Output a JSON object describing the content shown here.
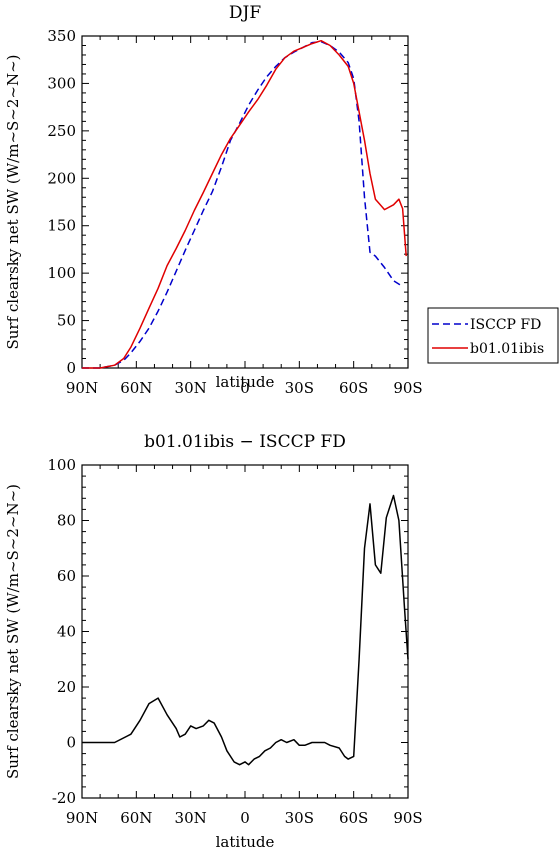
{
  "chart_data": [
    {
      "type": "line",
      "title": "DJF",
      "xlabel": "latitude",
      "ylabel": "Surf clearsky net SW (W/m~S~2~N~)",
      "xlim": [
        -90,
        90
      ],
      "ylim": [
        0,
        350
      ],
      "x_ticks": [
        -90,
        -60,
        -30,
        0,
        30,
        60,
        90
      ],
      "x_tick_labels": [
        "90N",
        "60N",
        "30N",
        "0",
        "30S",
        "60S",
        "90S"
      ],
      "y_ticks": [
        0,
        50,
        100,
        150,
        200,
        250,
        300,
        350
      ],
      "legend_position": "right",
      "series": [
        {
          "name": "ISCCP FD",
          "color": "#0000cc",
          "dash": "dashed",
          "x": [
            -90,
            -80,
            -72,
            -67,
            -63,
            -58,
            -53,
            -48,
            -43,
            -38,
            -33,
            -28,
            -23,
            -18,
            -13,
            -8,
            -3,
            2,
            7,
            12,
            17,
            22,
            27,
            32,
            37,
            42,
            47,
            52,
            57,
            60,
            63,
            66,
            69,
            72,
            77,
            82,
            87
          ],
          "values": [
            0,
            0,
            3,
            8,
            16,
            28,
            42,
            60,
            80,
            102,
            124,
            145,
            166,
            186,
            212,
            240,
            258,
            277,
            293,
            307,
            318,
            327,
            333,
            338,
            343,
            344,
            340,
            333,
            322,
            305,
            260,
            180,
            122,
            118,
            106,
            92,
            86
          ]
        },
        {
          "name": "b01.01ibis",
          "color": "#e00000",
          "dash": "solid",
          "x": [
            -90,
            -80,
            -72,
            -67,
            -63,
            -58,
            -53,
            -48,
            -43,
            -38,
            -33,
            -28,
            -23,
            -18,
            -13,
            -8,
            -3,
            2,
            7,
            12,
            17,
            22,
            27,
            32,
            37,
            42,
            47,
            52,
            57,
            60,
            63,
            66,
            69,
            72,
            77,
            82,
            85,
            87,
            89
          ],
          "values": [
            0,
            0,
            3,
            10,
            22,
            42,
            63,
            84,
            108,
            126,
            145,
            166,
            185,
            205,
            225,
            242,
            256,
            270,
            283,
            298,
            315,
            327,
            334,
            338,
            342,
            345,
            340,
            330,
            318,
            300,
            270,
            240,
            205,
            178,
            167,
            172,
            178,
            168,
            118
          ]
        }
      ]
    },
    {
      "type": "line",
      "title": "b01.01ibis − ISCCP FD",
      "xlabel": "latitude",
      "ylabel": "Surf clearsky net SW (W/m~S~2~N~)",
      "xlim": [
        -90,
        90
      ],
      "ylim": [
        -20,
        100
      ],
      "x_ticks": [
        -90,
        -60,
        -30,
        0,
        30,
        60,
        90
      ],
      "x_tick_labels": [
        "90N",
        "60N",
        "30N",
        "0",
        "30S",
        "60S",
        "90S"
      ],
      "y_ticks": [
        -20,
        0,
        20,
        40,
        60,
        80,
        100
      ],
      "series": [
        {
          "color": "#000000",
          "dash": "solid",
          "x": [
            -90,
            -80,
            -72,
            -63,
            -58,
            -53,
            -48,
            -43,
            -38,
            -36,
            -33,
            -30,
            -27,
            -23,
            -20,
            -17,
            -13,
            -10,
            -6,
            -3,
            0,
            2,
            5,
            8,
            11,
            14,
            17,
            20,
            23,
            27,
            30,
            33,
            37,
            40,
            44,
            47,
            52,
            55,
            57,
            60,
            63,
            66,
            69,
            72,
            75,
            78,
            82,
            85,
            88,
            90
          ],
          "values": [
            0,
            0,
            0,
            3,
            8,
            14,
            16,
            10,
            5,
            2,
            3,
            6,
            5,
            6,
            8,
            7,
            2,
            -3,
            -7,
            -8,
            -7,
            -8,
            -6,
            -5,
            -3,
            -2,
            0,
            1,
            0,
            1,
            -1,
            -1,
            0,
            0,
            0,
            -1,
            -2,
            -5,
            -6,
            -5,
            30,
            70,
            86,
            64,
            61,
            81,
            89,
            80,
            49,
            30
          ]
        }
      ]
    }
  ]
}
